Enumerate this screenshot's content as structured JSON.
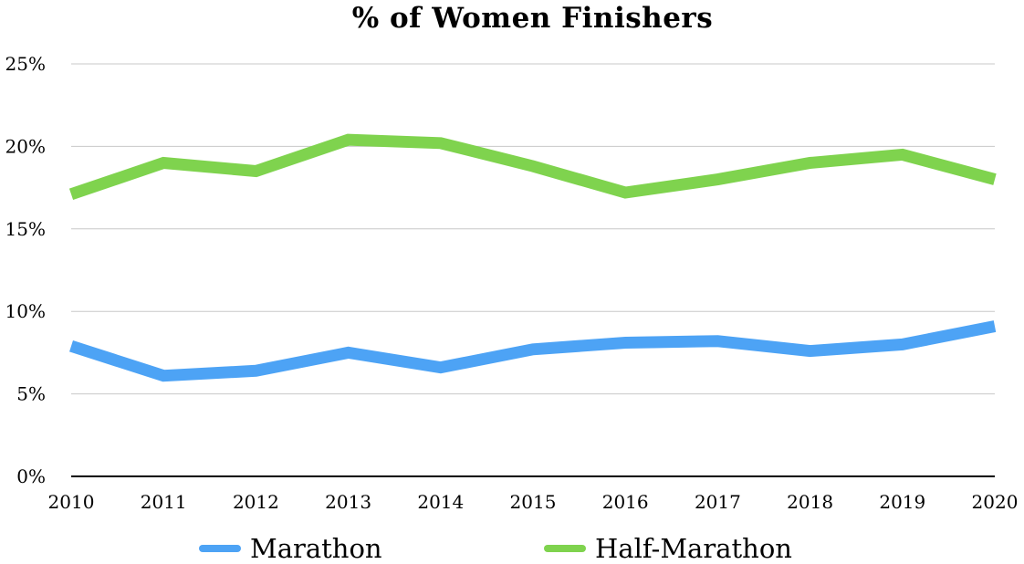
{
  "chart_data": {
    "type": "line",
    "title": "% of Women Finishers",
    "categories": [
      "2010",
      "2011",
      "2012",
      "2013",
      "2014",
      "2015",
      "2016",
      "2017",
      "2018",
      "2019",
      "2020"
    ],
    "series": [
      {
        "name": "Marathon",
        "color": "#4da3f5",
        "values": [
          7.9,
          6.1,
          6.4,
          7.5,
          6.6,
          7.7,
          8.1,
          8.2,
          7.6,
          8.0,
          9.1
        ]
      },
      {
        "name": "Half-Marathon",
        "color": "#7fd34e",
        "values": [
          17.1,
          19.0,
          18.5,
          20.4,
          20.2,
          18.8,
          17.2,
          18.0,
          19.0,
          19.5,
          18.0
        ]
      }
    ],
    "ylim": [
      0,
      25
    ],
    "yticks": [
      0,
      5,
      10,
      15,
      20,
      25
    ],
    "ytick_labels": [
      "0%",
      "5%",
      "10%",
      "15%",
      "20%",
      "25%"
    ],
    "grid": true,
    "legend_position": "bottom"
  }
}
